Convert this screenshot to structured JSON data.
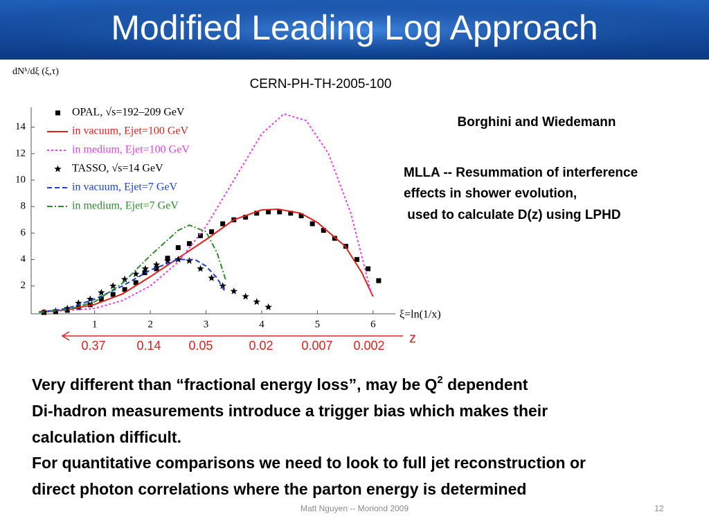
{
  "title": "Modified Leading Log Approach",
  "reference": "CERN-PH-TH-2005-100",
  "authors": "Borghini and Wiedemann",
  "description": [
    "MLLA -- Resummation of interference",
    "effects in shower evolution,",
    " used to calculate D(z) using LPHD"
  ],
  "z_axis": {
    "label": "z",
    "values": [
      "0.37",
      "0.14",
      "0.05",
      "0.02",
      "0.007",
      "0.002"
    ]
  },
  "body": [
    [
      "Very different than “fractional energy loss”, may be Q",
      "2",
      " dependent"
    ],
    [
      "Di-hadron measurements introduce a trigger bias which makes their"
    ],
    [
      "calculation difficult."
    ],
    [
      "For quantitative comparisons we need to look to full jet reconstruction or"
    ],
    [
      "direct photon correlations where the parton energy is determined"
    ]
  ],
  "footer": "Matt Nguyen -- Moriond 2009",
  "page_number": "12",
  "chart_data": {
    "type": "line",
    "y_label": "dNʰ/dξ (ξ,τ)",
    "x_label": "ξ=ln(1/x)",
    "xlim": [
      -0.14,
      6.4
    ],
    "ylim": [
      0,
      15.5
    ],
    "xticks": [
      1,
      2,
      3,
      4,
      5,
      6
    ],
    "yticks": [
      2,
      4,
      6,
      8,
      10,
      12,
      14
    ],
    "series": [
      {
        "name": "OPAL, √s=192–209 GeV",
        "color": "#000000",
        "marker": "square",
        "x": [
          0.09,
          0.3,
          0.51,
          0.71,
          0.92,
          1.12,
          1.33,
          1.54,
          1.74,
          1.9,
          2.11,
          2.31,
          2.5,
          2.7,
          2.9,
          3.1,
          3.3,
          3.5,
          3.71,
          3.91,
          4.12,
          4.32,
          4.52,
          4.71,
          4.91,
          5.11,
          5.31,
          5.51,
          5.71,
          5.91,
          6.1
        ],
        "values": [
          0,
          0.05,
          0.16,
          0.37,
          0.58,
          1.0,
          1.36,
          1.73,
          2.25,
          3.0,
          3.3,
          4.1,
          4.9,
          5.2,
          5.8,
          6.1,
          6.7,
          7.0,
          7.2,
          7.5,
          7.6,
          7.6,
          7.5,
          7.3,
          6.7,
          6.2,
          5.6,
          5.0,
          4.0,
          3.3,
          2.4
        ]
      },
      {
        "name": "in vacuum, Ejet=100 GeV",
        "color": "#e0201b",
        "style": "solid",
        "x": [
          0,
          0.5,
          1,
          1.5,
          2,
          2.5,
          3,
          3.5,
          4,
          4.3,
          4.7,
          5,
          5.5,
          5.8,
          6
        ],
        "values": [
          0.05,
          0.2,
          0.6,
          1.4,
          2.7,
          4.1,
          5.5,
          7.0,
          7.75,
          7.8,
          7.5,
          6.8,
          5.0,
          3.0,
          1.2
        ]
      },
      {
        "name": "in medium, Ejet=100 GeV",
        "color": "#e83ee8",
        "style": "dotted",
        "x": [
          0,
          1,
          1.5,
          2,
          2.5,
          3,
          3.5,
          4,
          4.4,
          4.8,
          5.2,
          5.6,
          5.97
        ],
        "values": [
          0,
          0.3,
          0.9,
          2.0,
          3.8,
          6.5,
          10,
          13.5,
          15.0,
          14.5,
          12,
          7.5,
          1.4
        ]
      },
      {
        "name": "TASSO, √s=14 GeV",
        "color": "#000000",
        "marker": "star",
        "x": [
          0.09,
          0.3,
          0.51,
          0.71,
          0.92,
          1.12,
          1.33,
          1.54,
          1.74,
          1.91,
          2.11,
          2.31,
          2.5,
          2.7,
          2.9,
          3.1,
          3.3,
          3.5,
          3.71,
          3.91,
          4.12
        ],
        "values": [
          0,
          0.1,
          0.3,
          0.7,
          1.0,
          1.5,
          2.0,
          2.5,
          2.9,
          3.3,
          3.6,
          3.9,
          4.0,
          3.9,
          3.3,
          2.6,
          2.0,
          1.6,
          1.2,
          0.8,
          0.4
        ]
      },
      {
        "name": "in vacuum, Ejet=7 GeV",
        "color": "#1a3fd1",
        "style": "dashed",
        "x": [
          0,
          0.5,
          1,
          1.5,
          2,
          2.5,
          2.8,
          3,
          3.2,
          3.35
        ],
        "values": [
          0,
          0.3,
          1.0,
          2.0,
          3.2,
          4.0,
          4.0,
          3.5,
          2.6,
          1.5
        ]
      },
      {
        "name": "in medium, Ejet=7 GeV",
        "color": "#2e8b2e",
        "style": "dashdot",
        "x": [
          0,
          0.5,
          1,
          1.5,
          2,
          2.5,
          2.7,
          3,
          3.2,
          3.35
        ],
        "values": [
          0,
          0.2,
          0.8,
          2.2,
          4.3,
          6.2,
          6.6,
          6.1,
          4.5,
          2.5
        ]
      }
    ]
  }
}
